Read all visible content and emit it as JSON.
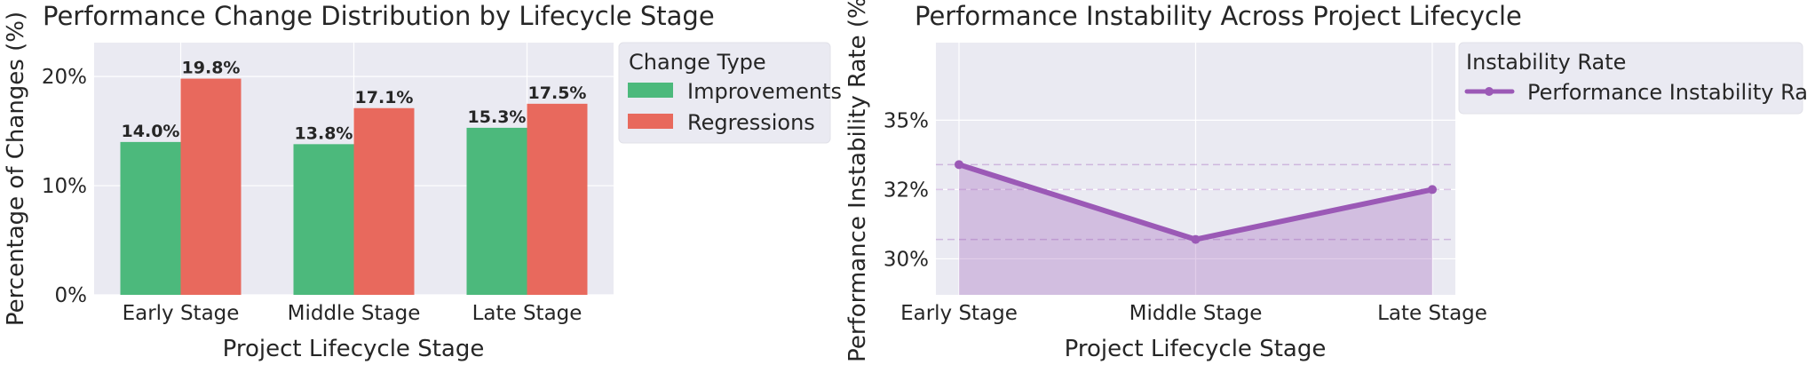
{
  "chart_data": [
    {
      "type": "bar",
      "title": "Performance Change Distribution by Lifecycle Stage",
      "xlabel": "Project Lifecycle Stage",
      "ylabel": "Percentage of Changes (%)",
      "categories": [
        "Early Stage",
        "Middle Stage",
        "Late Stage"
      ],
      "series": [
        {
          "name": "Improvements",
          "values": [
            14.0,
            13.8,
            15.3
          ],
          "labels": [
            "14.0%",
            "13.8%",
            "15.3%"
          ],
          "color": "#4cb97c"
        },
        {
          "name": "Regressions",
          "values": [
            19.8,
            17.1,
            17.5
          ],
          "labels": [
            "19.8%",
            "17.1%",
            "17.5%"
          ],
          "color": "#e8695d"
        }
      ],
      "ylim": [
        0,
        23.1
      ],
      "yticks": [
        0,
        10,
        20
      ],
      "ytick_labels": [
        "0%",
        "10%",
        "20%"
      ],
      "legend_title": "Change Type",
      "legend_position": "outside-top-right",
      "grid": true
    },
    {
      "type": "area",
      "title": "Performance Instability Across Project Lifecycle",
      "xlabel": "Project Lifecycle Stage",
      "ylabel": "Performance Instability Rate (%)",
      "categories": [
        "Early Stage",
        "Middle Stage",
        "Late Stage"
      ],
      "series": [
        {
          "name": "Performance Instability Rate",
          "values": [
            33.4,
            30.7,
            32.5
          ],
          "color": "#9b59b6"
        }
      ],
      "ylim": [
        28.7,
        37.8
      ],
      "yticks": [
        30,
        32.5,
        35
      ],
      "ytick_labels": [
        "30%",
        "32%",
        "35%"
      ],
      "legend_title": "Instability Rate",
      "legend_position": "outside-top-right",
      "grid": true
    }
  ]
}
